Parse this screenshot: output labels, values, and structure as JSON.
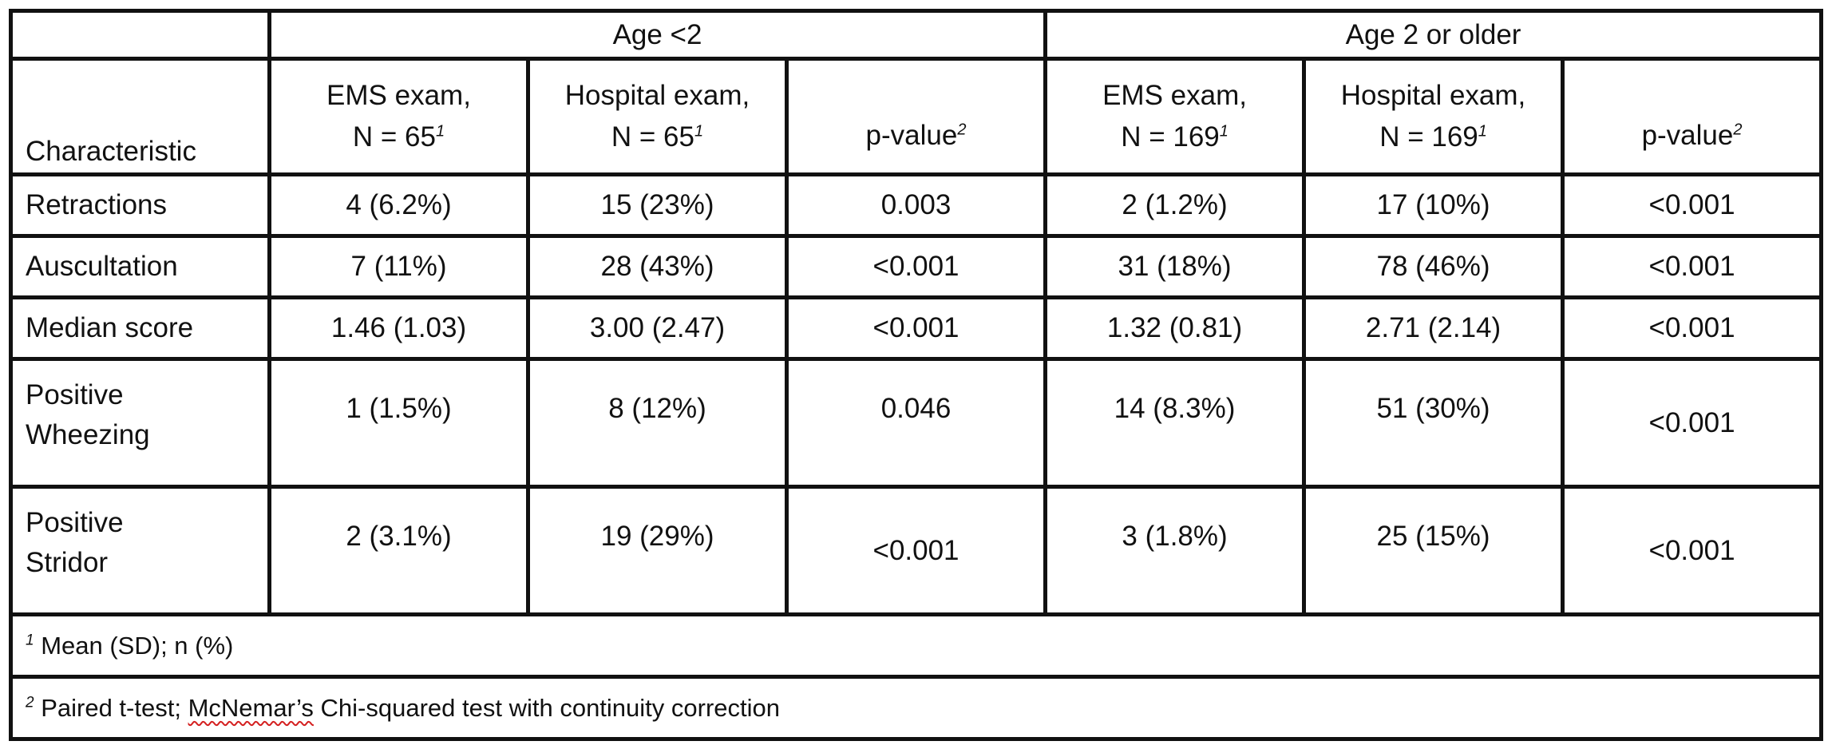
{
  "table": {
    "group_headers": [
      "Age <2",
      "Age 2 or older"
    ],
    "columns": {
      "characteristic": "Characteristic",
      "age_lt2": [
        {
          "line1": "EMS exam,",
          "line2": "N = 65",
          "sup": "1"
        },
        {
          "line1": "Hospital exam,",
          "line2": "N = 65",
          "sup": "1"
        },
        {
          "line1": "",
          "line2": "p-value",
          "sup": "2"
        }
      ],
      "age_ge2": [
        {
          "line1": "EMS exam,",
          "line2": "N = 169",
          "sup": "1"
        },
        {
          "line1": "Hospital exam,",
          "line2": "N = 169",
          "sup": "1"
        },
        {
          "line1": "",
          "line2": "p-value",
          "sup": "2"
        }
      ]
    },
    "rows": [
      {
        "label": "Retractions",
        "values": [
          "4 (6.2%)",
          "15 (23%)",
          "0.003",
          "2 (1.2%)",
          "17 (10%)",
          "<0.001"
        ]
      },
      {
        "label": "Auscultation",
        "values": [
          "7 (11%)",
          "28 (43%)",
          "<0.001",
          "31 (18%)",
          "78 (46%)",
          "<0.001"
        ]
      },
      {
        "label": "Median score",
        "values": [
          "1.46 (1.03)",
          "3.00 (2.47)",
          "<0.001",
          "1.32 (0.81)",
          "2.71 (2.14)",
          "<0.001"
        ]
      },
      {
        "label_line1": "Positive",
        "label_line2": "Wheezing",
        "values": [
          "1 (1.5%)",
          "8 (12%)",
          "0.046",
          "14 (8.3%)",
          "51 (30%)",
          "<0.001"
        ]
      },
      {
        "label_line1": "Positive",
        "label_line2": "Stridor",
        "values": [
          "2 (3.1%)",
          "19 (29%)",
          "<0.001",
          "3 (1.8%)",
          "25 (15%)",
          "<0.001"
        ]
      }
    ],
    "footnotes": [
      {
        "sup": "1",
        "text": "Mean (SD); n (%)"
      },
      {
        "sup": "2",
        "text_before": "Paired t-test;",
        "flagged_word": "McNemar’s",
        "text_after": "Chi-squared test with continuity correction"
      }
    ]
  }
}
